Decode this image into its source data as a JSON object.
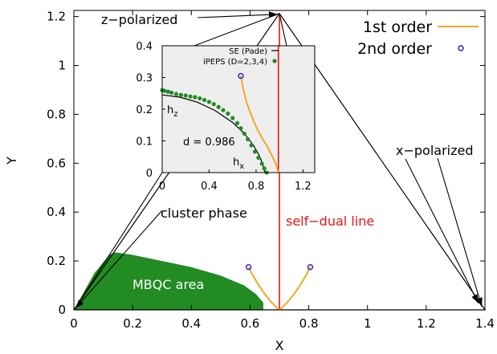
{
  "chart_data": [
    {
      "id": "main",
      "type": "line",
      "xlabel": "X",
      "ylabel": "Y",
      "xlim": [
        0,
        1.4
      ],
      "ylim": [
        0,
        1.225
      ],
      "xticks": [
        0,
        0.2,
        0.4,
        0.6,
        0.8,
        1,
        1.2,
        1.4
      ],
      "xtick_labels": [
        "0",
        "0.2",
        "0.4",
        "0.6",
        "0.8",
        "1",
        "1.2",
        "1.4"
      ],
      "yticks": [
        0,
        0.2,
        0.4,
        0.6,
        0.8,
        1,
        1.2
      ],
      "ytick_labels": [
        "0",
        "0.2",
        "0.4",
        "0.6",
        "0.8",
        "1",
        "1.2"
      ],
      "grid": false,
      "legend": {
        "position": "top-right",
        "entries": [
          {
            "name": "1st order",
            "marker": "line",
            "color": "#f5a623"
          },
          {
            "name": "2nd order",
            "marker": "open-circle",
            "color": "#2222cc"
          }
        ]
      },
      "triangle": {
        "x": [
          0,
          1.4,
          0.7,
          0
        ],
        "y": [
          0,
          0,
          1.2124,
          0
        ],
        "color": "#000000"
      },
      "self_dual_line": {
        "x": [
          0.7,
          0.7
        ],
        "y": [
          0,
          1.2124
        ],
        "color": "#ee1111"
      },
      "mbqc_area": {
        "color": "#228b22",
        "x": [
          0,
          0.07,
          0.12,
          0.14,
          0.2,
          0.3,
          0.4,
          0.5,
          0.58,
          0.62,
          0.645,
          0.645,
          0
        ],
        "y": [
          0,
          0.15,
          0.225,
          0.235,
          0.225,
          0.2,
          0.175,
          0.14,
          0.1,
          0.065,
          0.03,
          0,
          0
        ]
      },
      "series": [
        {
          "name": "1st order",
          "type": "line",
          "color": "#f5a623",
          "segments": [
            {
              "x": [
                0.595,
                0.61,
                0.63,
                0.65,
                0.67,
                0.69,
                0.7
              ],
              "y": [
                0.175,
                0.14,
                0.1,
                0.065,
                0.035,
                0.01,
                0
              ]
            },
            {
              "x": [
                0.7,
                0.71,
                0.73,
                0.75,
                0.77,
                0.79,
                0.805
              ],
              "y": [
                0,
                0.01,
                0.035,
                0.065,
                0.1,
                0.14,
                0.175
              ]
            }
          ]
        },
        {
          "name": "2nd order",
          "type": "scatter",
          "color": "#2222cc",
          "points": [
            {
              "x": 0.595,
              "y": 0.175
            },
            {
              "x": 0.805,
              "y": 0.175
            }
          ]
        }
      ],
      "annotations": {
        "z_polarized": "z−polarized",
        "x_polarized": "x−polarized",
        "cluster_phase": "cluster phase",
        "self_dual": "self−dual line",
        "mbqc": "MBQC area"
      }
    },
    {
      "id": "inset",
      "type": "scatter",
      "xlim": [
        0,
        1.3
      ],
      "ylim": [
        0,
        0.4
      ],
      "xticks": [
        0,
        0.4,
        0.8,
        1.2
      ],
      "xtick_labels": [
        "0",
        "0.4",
        "0.8",
        "1.2"
      ],
      "yticks": [
        0,
        0.1,
        0.2,
        0.3,
        0.4
      ],
      "ytick_labels": [
        "0",
        "0.1",
        "0.2",
        "0.3",
        "0.4"
      ],
      "background": "#eeeeee",
      "legend": {
        "position": "top-right",
        "entries": [
          {
            "name": "SE (Pade)",
            "marker": "line",
            "color": "#000000"
          },
          {
            "name": "iPEPS (D=2,3,4)",
            "marker": "dot",
            "color": "#228b22"
          }
        ]
      },
      "series": [
        {
          "name": "SE (Pade)",
          "type": "line",
          "color": "#000000",
          "x": [
            0,
            0.15,
            0.3,
            0.45,
            0.6,
            0.7,
            0.78,
            0.83,
            0.86,
            0.875
          ],
          "y": [
            0.245,
            0.238,
            0.222,
            0.196,
            0.158,
            0.123,
            0.085,
            0.052,
            0.022,
            0
          ]
        },
        {
          "name": "iPEPS (D=2,3,4)",
          "type": "scatter",
          "color": "#228b22",
          "x": [
            0,
            0.02,
            0.05,
            0.08,
            0.12,
            0.16,
            0.2,
            0.24,
            0.28,
            0.32,
            0.36,
            0.4,
            0.44,
            0.48,
            0.52,
            0.56,
            0.6,
            0.64,
            0.67,
            0.7,
            0.73,
            0.76,
            0.79,
            0.82,
            0.85,
            0.87,
            0.89
          ],
          "y": [
            0.26,
            0.258,
            0.255,
            0.252,
            0.248,
            0.245,
            0.243,
            0.24,
            0.238,
            0.234,
            0.229,
            0.223,
            0.216,
            0.207,
            0.197,
            0.186,
            0.172,
            0.156,
            0.14,
            0.123,
            0.105,
            0.086,
            0.066,
            0.047,
            0.028,
            0.013,
            0
          ]
        },
        {
          "name": "1st order",
          "type": "line",
          "color": "#f5a623",
          "x": [
            0.67,
            0.69,
            0.72,
            0.76,
            0.8,
            0.85,
            0.9,
            0.94,
            0.97,
            0.99
          ],
          "y": [
            0.305,
            0.265,
            0.22,
            0.18,
            0.145,
            0.11,
            0.08,
            0.05,
            0.025,
            0
          ]
        },
        {
          "name": "2nd order",
          "type": "scatter",
          "color": "#2222cc",
          "points": [
            {
              "x": 0.67,
              "y": 0.305
            }
          ]
        }
      ],
      "self_dual_line": {
        "x": [
          0.99,
          0.99
        ],
        "y": [
          0,
          0.4
        ],
        "color": "#ee1111"
      },
      "annotations": {
        "hz": "h",
        "hz_sub": "z",
        "hx": "h",
        "hx_sub": "x",
        "d_value": "d = 0.986"
      }
    }
  ]
}
